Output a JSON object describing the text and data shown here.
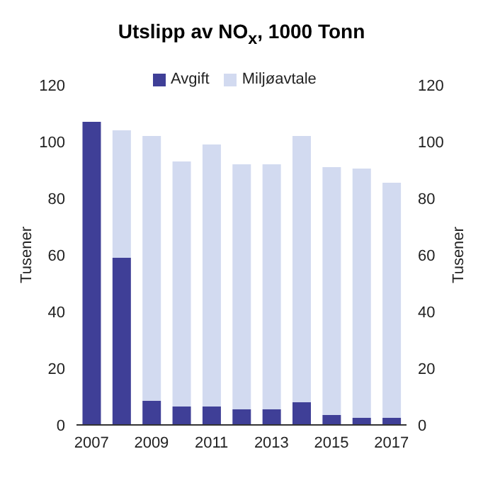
{
  "chart_data": {
    "type": "bar",
    "title": "Utslipp av NO$_{x}$, 1000 Tonn",
    "categories": [
      "2007",
      null,
      "2009",
      null,
      "2011",
      null,
      "2013",
      null,
      "2015",
      null,
      "2017"
    ],
    "stacked": true,
    "series": [
      {
        "name": "Avgift",
        "color": "#3f3f97",
        "values": [
          107,
          59,
          8.5,
          6.5,
          6.5,
          5.5,
          5.5,
          8,
          3.5,
          2.5,
          2.5
        ]
      },
      {
        "name": "Miljøavtale",
        "color": "#d2daf0",
        "values": [
          0,
          45,
          93.5,
          86.5,
          92.5,
          86.5,
          86.5,
          94,
          87.5,
          88,
          83
        ]
      }
    ],
    "ylim": [
      0,
      120
    ],
    "yticks": [
      0,
      20,
      40,
      60,
      80,
      100,
      120
    ],
    "y2lim": [
      0,
      120
    ],
    "y2ticks": [
      0,
      20,
      40,
      60,
      80,
      100,
      120
    ],
    "ylabel": "Tusener",
    "y2label": "Tusener",
    "legend": "top"
  }
}
